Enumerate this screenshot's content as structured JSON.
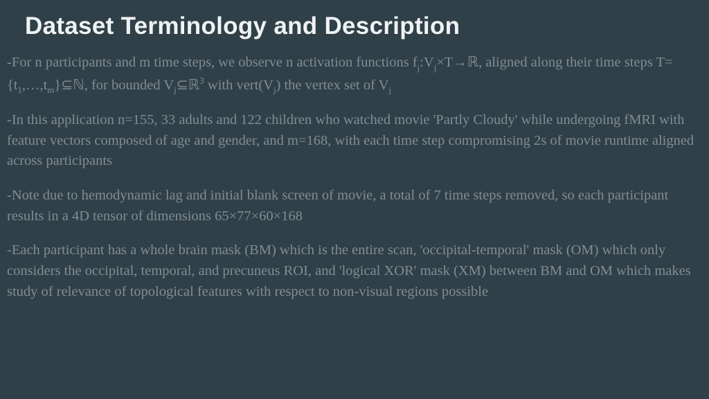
{
  "background_color": "#2f4048",
  "title_color": "#f0f2f3",
  "body_color": "#828d92",
  "title_fontsize": 35,
  "body_fontsize": 20.5,
  "title": "Dataset Terminology and Description",
  "paragraphs": {
    "p1_a": "-For n participants and m time steps, we observe n activation functions f",
    "p1_j1": "j",
    "p1_b": ":V",
    "p1_j2": "j",
    "p1_c": "×T→",
    "p1_R": "ℝ",
    "p1_d": ", aligned along their time steps T={t",
    "p1_1": "1",
    "p1_e": ",…,t",
    "p1_m": "m",
    "p1_f": "}⊆",
    "p1_N": "ℕ",
    "p1_g": ", for bounded V",
    "p1_j3": "j",
    "p1_h": "⊆",
    "p1_R2": "ℝ",
    "p1_3": "3",
    "p1_i": " with vert(V",
    "p1_j4": "j",
    "p1_j": ") the vertex set of V",
    "p1_j5": "j",
    "p2": "-In this application  n=155, 33 adults and 122 children who watched movie 'Partly Cloudy' while undergoing fMRI with feature vectors composed of age and gender, and  m=168, with each time step compromising 2s of movie runtime aligned across participants",
    "p3": "-Note due to hemodynamic lag and initial blank screen of movie, a total of 7 time steps removed, so each participant results in a 4D tensor of dimensions 65×77×60×168",
    "p4": "-Each participant has a whole brain mask (BM) which is the entire scan, 'occipital-temporal' mask (OM) which only considers the occipital, temporal, and precuneus ROI, and 'logical XOR' mask (XM) between BM and OM which makes study of relevance of topological features with respect to non-visual regions possible"
  }
}
